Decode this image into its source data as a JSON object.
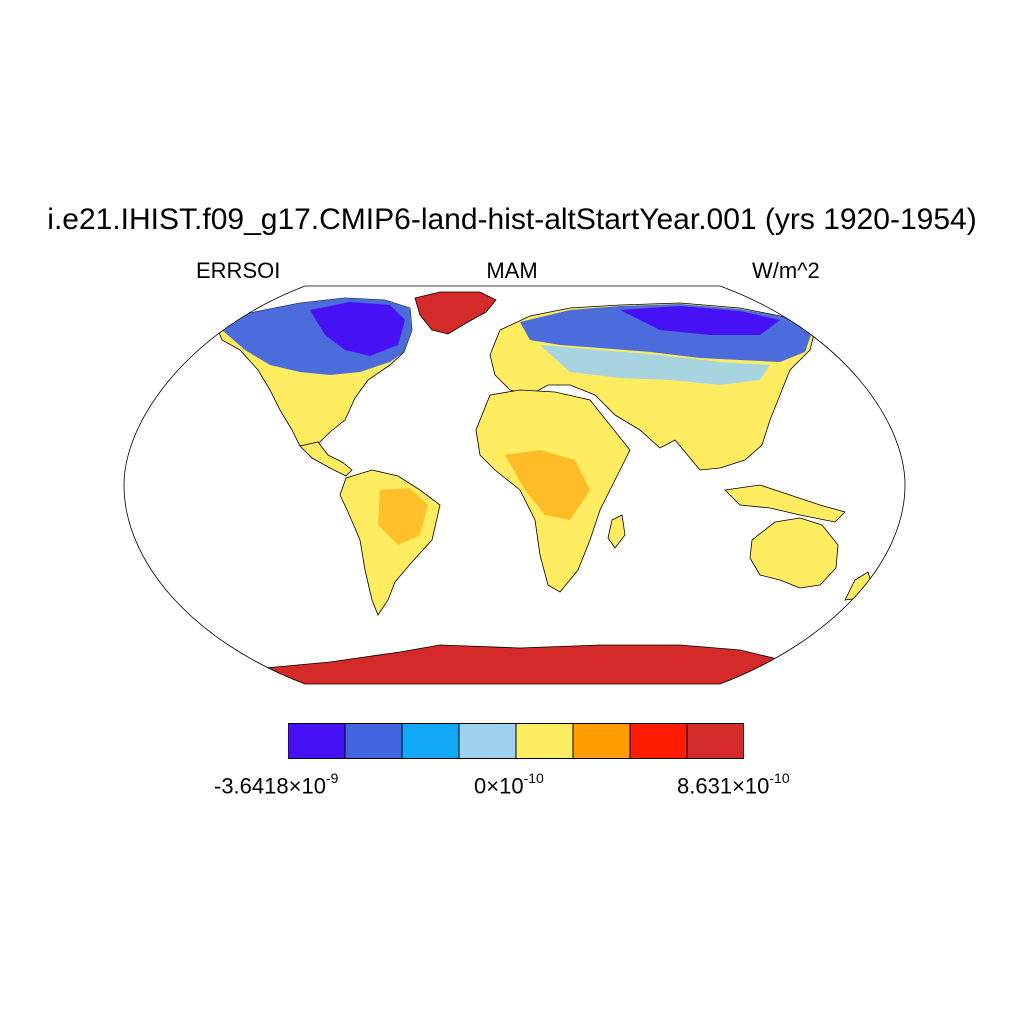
{
  "title": "i.e21.IHIST.f09_g17.CMIP6-land-hist-altStartYear.001 (yrs 1920-1954)",
  "left_label": "ERRSOI",
  "center_label": "MAM",
  "right_label": "W/m^2",
  "colorbar": {
    "colors": [
      "#4612f5",
      "#4165e0",
      "#12a8f5",
      "#9ed1ee",
      "#ffec60",
      "#ff9d00",
      "#ff1c00",
      "#d42a2a"
    ],
    "labels": [
      {
        "mantissa": "-3.6418",
        "times": "×10",
        "exponent": "-9"
      },
      {
        "mantissa": "0",
        "times": "×10",
        "exponent": "-10"
      },
      {
        "mantissa": "8.631",
        "times": "×10",
        "exponent": "-10"
      }
    ]
  },
  "map_colors": {
    "ocean": "#ffffff",
    "coast": "#000000"
  }
}
